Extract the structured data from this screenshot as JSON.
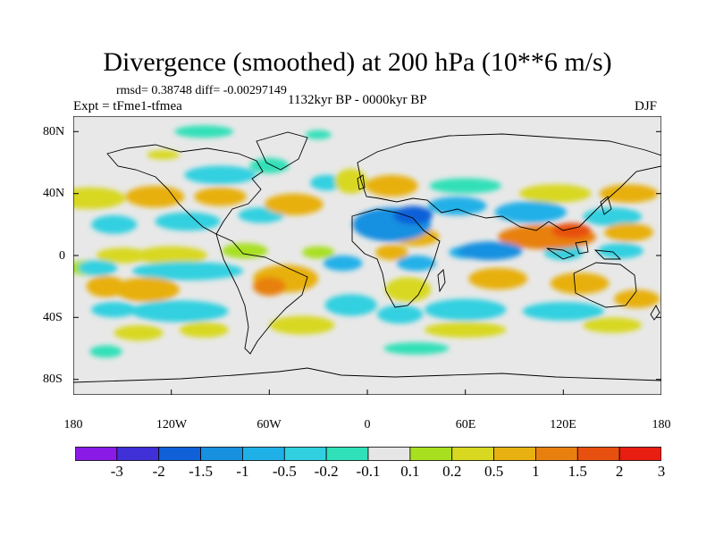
{
  "title": "Divergence (smoothed) at 200 hPa (10**6 m/s)",
  "stats_line": "rmsd= 0.38748 diff= -0.00297149",
  "experiment": "Expt = tFme1-tfmea",
  "period": "1132kyr BP - 0000kyr BP",
  "season": "DJF",
  "lat_ticks": [
    "80N",
    "40N",
    "0",
    "40S",
    "80S"
  ],
  "lon_ticks": [
    "180",
    "120W",
    "60W",
    "0",
    "60E",
    "120E",
    "180"
  ],
  "colorbar": {
    "labels": [
      "-3",
      "-2",
      "-1.5",
      "-1",
      "-0.5",
      "-0.2",
      "-0.1",
      "0.1",
      "0.2",
      "0.5",
      "1",
      "1.5",
      "2",
      "3"
    ],
    "colors": [
      "#8a1ae6",
      "#4030d8",
      "#1060d8",
      "#1890e0",
      "#20b0e8",
      "#30d0e0",
      "#30e0b8",
      "#e6e6e6",
      "#a8e020",
      "#d8d820",
      "#e8b010",
      "#e88010",
      "#e85010",
      "#e81e10"
    ]
  },
  "chart_data": {
    "type": "map",
    "variable": "Divergence (smoothed) at 200 hPa",
    "units": "10**6 m/s",
    "projection": "cylindrical equidistant",
    "lon_range": [
      -180,
      180
    ],
    "lat_range": [
      -90,
      90
    ],
    "contour_levels": [
      -3,
      -2,
      -1.5,
      -1,
      -0.5,
      -0.2,
      -0.1,
      0.1,
      0.2,
      0.5,
      1,
      1.5,
      2,
      3
    ],
    "blobs": [
      {
        "lon": -170,
        "lat": -8,
        "rx": 14,
        "ry": 5,
        "v": 0.15
      },
      {
        "lon": -150,
        "lat": 0,
        "rx": 16,
        "ry": 5,
        "v": 0.3
      },
      {
        "lon": -120,
        "lat": 0,
        "rx": 22,
        "ry": 6,
        "v": 0.25
      },
      {
        "lon": -75,
        "lat": 3,
        "rx": 14,
        "ry": 5,
        "v": 0.15
      },
      {
        "lon": -30,
        "lat": 2,
        "rx": 10,
        "ry": 4,
        "v": 0.15
      },
      {
        "lon": -155,
        "lat": 20,
        "rx": 14,
        "ry": 6,
        "v": -0.35
      },
      {
        "lon": -110,
        "lat": 22,
        "rx": 20,
        "ry": 6,
        "v": -0.3
      },
      {
        "lon": -65,
        "lat": 26,
        "rx": 14,
        "ry": 5,
        "v": -0.3
      },
      {
        "lon": -170,
        "lat": 37,
        "rx": 22,
        "ry": 7,
        "v": 0.45
      },
      {
        "lon": -130,
        "lat": 38,
        "rx": 18,
        "ry": 7,
        "v": 0.75
      },
      {
        "lon": -90,
        "lat": 38,
        "rx": 16,
        "ry": 6,
        "v": 0.5
      },
      {
        "lon": -45,
        "lat": 33,
        "rx": 18,
        "ry": 7,
        "v": 0.55
      },
      {
        "lon": -90,
        "lat": 52,
        "rx": 22,
        "ry": 6,
        "v": -0.25
      },
      {
        "lon": -60,
        "lat": 58,
        "rx": 12,
        "ry": 5,
        "v": -0.15
      },
      {
        "lon": -25,
        "lat": 47,
        "rx": 10,
        "ry": 5,
        "v": -0.3
      },
      {
        "lon": -125,
        "lat": 65,
        "rx": 10,
        "ry": 3,
        "v": 0.2
      },
      {
        "lon": -100,
        "lat": 80,
        "rx": 18,
        "ry": 4,
        "v": -0.15
      },
      {
        "lon": -30,
        "lat": 78,
        "rx": 8,
        "ry": 3,
        "v": -0.15
      },
      {
        "lon": -10,
        "lat": 48,
        "rx": 10,
        "ry": 8,
        "v": 0.4
      },
      {
        "lon": 15,
        "lat": 45,
        "rx": 16,
        "ry": 7,
        "v": 0.55
      },
      {
        "lon": 60,
        "lat": 45,
        "rx": 22,
        "ry": 5,
        "v": -0.15
      },
      {
        "lon": 115,
        "lat": 40,
        "rx": 22,
        "ry": 6,
        "v": 0.25
      },
      {
        "lon": 160,
        "lat": 40,
        "rx": 18,
        "ry": 6,
        "v": 0.55
      },
      {
        "lon": 15,
        "lat": 20,
        "rx": 24,
        "ry": 11,
        "v": -1.2
      },
      {
        "lon": 28,
        "lat": 26,
        "rx": 12,
        "ry": 6,
        "v": -1.7
      },
      {
        "lon": 55,
        "lat": 32,
        "rx": 18,
        "ry": 6,
        "v": -0.55
      },
      {
        "lon": 100,
        "lat": 28,
        "rx": 22,
        "ry": 7,
        "v": -0.5
      },
      {
        "lon": 150,
        "lat": 25,
        "rx": 18,
        "ry": 6,
        "v": -0.4
      },
      {
        "lon": 30,
        "lat": 12,
        "rx": 14,
        "ry": 6,
        "v": 0.8
      },
      {
        "lon": 15,
        "lat": 2,
        "rx": 10,
        "ry": 5,
        "v": 0.9
      },
      {
        "lon": 110,
        "lat": 12,
        "rx": 30,
        "ry": 8,
        "v": 1.1
      },
      {
        "lon": 125,
        "lat": 16,
        "rx": 12,
        "ry": 5,
        "v": 1.6
      },
      {
        "lon": 160,
        "lat": 15,
        "rx": 15,
        "ry": 6,
        "v": 0.6
      },
      {
        "lon": 75,
        "lat": 3,
        "rx": 20,
        "ry": 6,
        "v": -1.3
      },
      {
        "lon": 60,
        "lat": 2,
        "rx": 10,
        "ry": 4,
        "v": -0.8
      },
      {
        "lon": 120,
        "lat": 2,
        "rx": 12,
        "ry": 5,
        "v": -0.4
      },
      {
        "lon": 155,
        "lat": 3,
        "rx": 14,
        "ry": 5,
        "v": -0.35
      },
      {
        "lon": 30,
        "lat": -5,
        "rx": 12,
        "ry": 5,
        "v": -0.5
      },
      {
        "lon": -110,
        "lat": -10,
        "rx": 34,
        "ry": 6,
        "v": -0.45
      },
      {
        "lon": -165,
        "lat": -8,
        "rx": 12,
        "ry": 5,
        "v": -0.4
      },
      {
        "lon": -15,
        "lat": -5,
        "rx": 12,
        "ry": 5,
        "v": -0.5
      },
      {
        "lon": -135,
        "lat": -22,
        "rx": 20,
        "ry": 8,
        "v": 0.8
      },
      {
        "lon": -160,
        "lat": -20,
        "rx": 12,
        "ry": 7,
        "v": 0.6
      },
      {
        "lon": -50,
        "lat": -15,
        "rx": 20,
        "ry": 9,
        "v": 0.75
      },
      {
        "lon": -60,
        "lat": -20,
        "rx": 10,
        "ry": 6,
        "v": 1.2
      },
      {
        "lon": 25,
        "lat": -22,
        "rx": 14,
        "ry": 8,
        "v": 0.45
      },
      {
        "lon": 80,
        "lat": -15,
        "rx": 18,
        "ry": 7,
        "v": 0.7
      },
      {
        "lon": 130,
        "lat": -18,
        "rx": 18,
        "ry": 7,
        "v": 0.6
      },
      {
        "lon": 165,
        "lat": -28,
        "rx": 14,
        "ry": 6,
        "v": 0.5
      },
      {
        "lon": -115,
        "lat": -36,
        "rx": 30,
        "ry": 7,
        "v": -0.35
      },
      {
        "lon": -155,
        "lat": -35,
        "rx": 14,
        "ry": 5,
        "v": -0.3
      },
      {
        "lon": -10,
        "lat": -32,
        "rx": 16,
        "ry": 7,
        "v": -0.35
      },
      {
        "lon": 20,
        "lat": -38,
        "rx": 14,
        "ry": 6,
        "v": -0.3
      },
      {
        "lon": 60,
        "lat": -35,
        "rx": 25,
        "ry": 7,
        "v": -0.35
      },
      {
        "lon": 120,
        "lat": -36,
        "rx": 25,
        "ry": 6,
        "v": -0.3
      },
      {
        "lon": -140,
        "lat": -50,
        "rx": 15,
        "ry": 5,
        "v": 0.3
      },
      {
        "lon": -100,
        "lat": -48,
        "rx": 15,
        "ry": 5,
        "v": 0.3
      },
      {
        "lon": -40,
        "lat": -45,
        "rx": 20,
        "ry": 6,
        "v": 0.3
      },
      {
        "lon": 60,
        "lat": -48,
        "rx": 25,
        "ry": 5,
        "v": 0.25
      },
      {
        "lon": 150,
        "lat": -45,
        "rx": 18,
        "ry": 5,
        "v": 0.25
      },
      {
        "lon": -160,
        "lat": -62,
        "rx": 10,
        "ry": 4,
        "v": -0.15
      },
      {
        "lon": 30,
        "lat": -60,
        "rx": 20,
        "ry": 4,
        "v": -0.15
      }
    ]
  }
}
